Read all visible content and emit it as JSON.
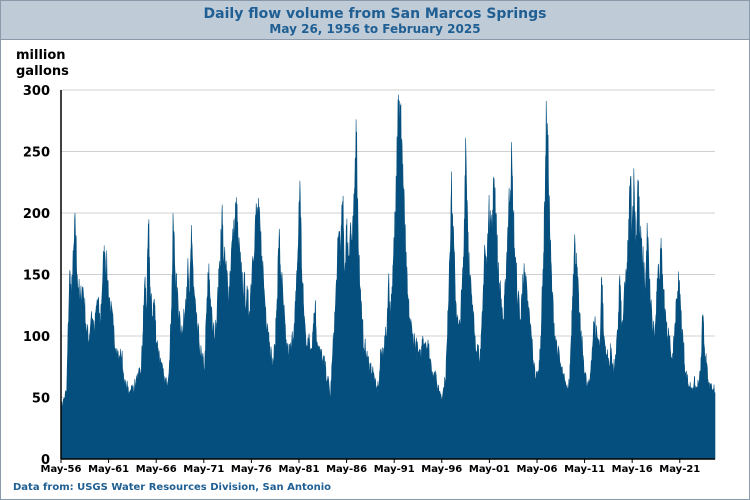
{
  "header": {
    "title": "Daily flow volume from San Marcos Springs",
    "subtitle": "May 26, 1956 to February 2025"
  },
  "source_text": "Data from:  USGS Water Resources Division, San Antonio",
  "colors": {
    "area": "#054f7e",
    "header_bg": "#bfcbd7",
    "title": "#1f5f93",
    "grid": "#d0d0d0"
  },
  "chart_data": {
    "type": "area",
    "title": "Daily flow volume from San Marcos Springs",
    "subtitle": "May 26, 1956 to February 2025",
    "ylabel": "million gallons",
    "xlabel": "",
    "ylim": [
      0,
      300
    ],
    "yticks": [
      0,
      50,
      100,
      150,
      200,
      250,
      300
    ],
    "xlim": [
      1956.4,
      2025.1
    ],
    "xticks": [
      {
        "x": 1956.4,
        "label": "May-56"
      },
      {
        "x": 1961.4,
        "label": "May-61"
      },
      {
        "x": 1966.4,
        "label": "May-66"
      },
      {
        "x": 1971.4,
        "label": "May-71"
      },
      {
        "x": 1976.4,
        "label": "May-76"
      },
      {
        "x": 1981.4,
        "label": "May-81"
      },
      {
        "x": 1986.4,
        "label": "May-86"
      },
      {
        "x": 1991.4,
        "label": "May-91"
      },
      {
        "x": 1996.4,
        "label": "May-96"
      },
      {
        "x": 2001.4,
        "label": "May-01"
      },
      {
        "x": 2006.4,
        "label": "May-06"
      },
      {
        "x": 2011.4,
        "label": "May-11"
      },
      {
        "x": 2016.4,
        "label": "May-16"
      },
      {
        "x": 2021.4,
        "label": "May-21"
      }
    ],
    "grid": "horizontal",
    "series": [
      {
        "name": "",
        "points": [
          [
            1956.4,
            40
          ],
          [
            1956.7,
            48
          ],
          [
            1957.0,
            55
          ],
          [
            1957.3,
            150
          ],
          [
            1957.5,
            130
          ],
          [
            1957.7,
            160
          ],
          [
            1957.9,
            188
          ],
          [
            1958.1,
            150
          ],
          [
            1958.4,
            125
          ],
          [
            1958.7,
            140
          ],
          [
            1959.0,
            110
          ],
          [
            1959.3,
            95
          ],
          [
            1959.6,
            120
          ],
          [
            1959.9,
            100
          ],
          [
            1960.2,
            130
          ],
          [
            1960.5,
            110
          ],
          [
            1960.8,
            150
          ],
          [
            1961.0,
            168
          ],
          [
            1961.3,
            145
          ],
          [
            1961.6,
            120
          ],
          [
            1961.9,
            105
          ],
          [
            1962.2,
            90
          ],
          [
            1962.5,
            80
          ],
          [
            1962.8,
            85
          ],
          [
            1963.0,
            60
          ],
          [
            1963.3,
            58
          ],
          [
            1963.6,
            55
          ],
          [
            1963.9,
            57
          ],
          [
            1964.2,
            60
          ],
          [
            1964.5,
            65
          ],
          [
            1964.8,
            70
          ],
          [
            1965.0,
            100
          ],
          [
            1965.2,
            145
          ],
          [
            1965.4,
            120
          ],
          [
            1965.6,
            188
          ],
          [
            1965.8,
            130
          ],
          [
            1966.0,
            115
          ],
          [
            1966.2,
            130
          ],
          [
            1966.4,
            95
          ],
          [
            1966.6,
            90
          ],
          [
            1966.9,
            75
          ],
          [
            1967.2,
            65
          ],
          [
            1967.5,
            60
          ],
          [
            1967.8,
            80
          ],
          [
            1968.0,
            120
          ],
          [
            1968.2,
            192
          ],
          [
            1968.4,
            150
          ],
          [
            1968.6,
            130
          ],
          [
            1968.9,
            115
          ],
          [
            1969.2,
            100
          ],
          [
            1969.5,
            130
          ],
          [
            1969.7,
            155
          ],
          [
            1969.9,
            120
          ],
          [
            1970.1,
            190
          ],
          [
            1970.3,
            140
          ],
          [
            1970.6,
            110
          ],
          [
            1970.9,
            95
          ],
          [
            1971.2,
            80
          ],
          [
            1971.5,
            75
          ],
          [
            1971.7,
            120
          ],
          [
            1971.9,
            150
          ],
          [
            1972.1,
            130
          ],
          [
            1972.3,
            105
          ],
          [
            1972.6,
            100
          ],
          [
            1972.8,
            120
          ],
          [
            1973.0,
            145
          ],
          [
            1973.3,
            200
          ],
          [
            1973.5,
            160
          ],
          [
            1973.8,
            150
          ],
          [
            1974.0,
            130
          ],
          [
            1974.3,
            170
          ],
          [
            1974.6,
            180
          ],
          [
            1974.8,
            204
          ],
          [
            1975.0,
            175
          ],
          [
            1975.3,
            150
          ],
          [
            1975.6,
            140
          ],
          [
            1975.9,
            130
          ],
          [
            1976.2,
            120
          ],
          [
            1976.5,
            160
          ],
          [
            1976.8,
            192
          ],
          [
            1977.0,
            197
          ],
          [
            1977.2,
            190
          ],
          [
            1977.5,
            165
          ],
          [
            1977.8,
            130
          ],
          [
            1978.1,
            110
          ],
          [
            1978.3,
            95
          ],
          [
            1978.6,
            75
          ],
          [
            1978.9,
            90
          ],
          [
            1979.1,
            130
          ],
          [
            1979.3,
            178
          ],
          [
            1979.5,
            150
          ],
          [
            1979.8,
            120
          ],
          [
            1980.0,
            95
          ],
          [
            1980.3,
            85
          ],
          [
            1980.6,
            90
          ],
          [
            1980.9,
            110
          ],
          [
            1981.1,
            130
          ],
          [
            1981.3,
            170
          ],
          [
            1981.5,
            226
          ],
          [
            1981.7,
            150
          ],
          [
            1981.9,
            120
          ],
          [
            1982.1,
            100
          ],
          [
            1982.4,
            95
          ],
          [
            1982.7,
            90
          ],
          [
            1982.9,
            110
          ],
          [
            1983.1,
            125
          ],
          [
            1983.3,
            95
          ],
          [
            1983.6,
            85
          ],
          [
            1983.9,
            80
          ],
          [
            1984.1,
            75
          ],
          [
            1984.4,
            65
          ],
          [
            1984.7,
            50
          ],
          [
            1984.9,
            80
          ],
          [
            1985.2,
            120
          ],
          [
            1985.4,
            150
          ],
          [
            1985.6,
            185
          ],
          [
            1985.8,
            170
          ],
          [
            1986.0,
            204
          ],
          [
            1986.2,
            150
          ],
          [
            1986.4,
            185
          ],
          [
            1986.6,
            165
          ],
          [
            1986.8,
            190
          ],
          [
            1987.0,
            170
          ],
          [
            1987.2,
            200
          ],
          [
            1987.4,
            276
          ],
          [
            1987.6,
            190
          ],
          [
            1987.8,
            140
          ],
          [
            1988.0,
            110
          ],
          [
            1988.3,
            90
          ],
          [
            1988.6,
            80
          ],
          [
            1988.9,
            75
          ],
          [
            1989.2,
            70
          ],
          [
            1989.5,
            55
          ],
          [
            1989.8,
            60
          ],
          [
            1990.0,
            85
          ],
          [
            1990.3,
            90
          ],
          [
            1990.6,
            100
          ],
          [
            1990.8,
            145
          ],
          [
            1991.0,
            120
          ],
          [
            1991.2,
            130
          ],
          [
            1991.4,
            175
          ],
          [
            1991.6,
            230
          ],
          [
            1991.8,
            292
          ],
          [
            1992.0,
            275
          ],
          [
            1992.2,
            260
          ],
          [
            1992.4,
            210
          ],
          [
            1992.6,
            165
          ],
          [
            1992.8,
            130
          ],
          [
            1993.0,
            115
          ],
          [
            1993.3,
            100
          ],
          [
            1993.6,
            95
          ],
          [
            1993.9,
            85
          ],
          [
            1994.2,
            80
          ],
          [
            1994.4,
            100
          ],
          [
            1994.7,
            95
          ],
          [
            1995.0,
            90
          ],
          [
            1995.3,
            75
          ],
          [
            1995.6,
            70
          ],
          [
            1995.9,
            60
          ],
          [
            1996.2,
            55
          ],
          [
            1996.5,
            52
          ],
          [
            1996.8,
            65
          ],
          [
            1997.0,
            100
          ],
          [
            1997.2,
            160
          ],
          [
            1997.4,
            218
          ],
          [
            1997.6,
            180
          ],
          [
            1997.8,
            140
          ],
          [
            1998.0,
            115
          ],
          [
            1998.2,
            100
          ],
          [
            1998.5,
            130
          ],
          [
            1998.7,
            160
          ],
          [
            1998.9,
            261
          ],
          [
            1999.1,
            200
          ],
          [
            1999.3,
            150
          ],
          [
            1999.6,
            120
          ],
          [
            1999.9,
            100
          ],
          [
            2000.2,
            90
          ],
          [
            2000.5,
            85
          ],
          [
            2000.7,
            120
          ],
          [
            2000.9,
            174
          ],
          [
            2001.1,
            150
          ],
          [
            2001.3,
            190
          ],
          [
            2001.5,
            202
          ],
          [
            2001.7,
            180
          ],
          [
            2001.9,
            228
          ],
          [
            2002.1,
            200
          ],
          [
            2002.3,
            150
          ],
          [
            2002.6,
            130
          ],
          [
            2002.9,
            110
          ],
          [
            2003.1,
            140
          ],
          [
            2003.3,
            180
          ],
          [
            2003.5,
            210
          ],
          [
            2003.7,
            243
          ],
          [
            2003.9,
            200
          ],
          [
            2004.1,
            160
          ],
          [
            2004.4,
            130
          ],
          [
            2004.7,
            110
          ],
          [
            2004.9,
            150
          ],
          [
            2005.2,
            140
          ],
          [
            2005.5,
            120
          ],
          [
            2005.8,
            100
          ],
          [
            2006.0,
            80
          ],
          [
            2006.3,
            65
          ],
          [
            2006.6,
            70
          ],
          [
            2006.8,
            100
          ],
          [
            2007.0,
            140
          ],
          [
            2007.2,
            200
          ],
          [
            2007.4,
            278
          ],
          [
            2007.6,
            230
          ],
          [
            2007.8,
            170
          ],
          [
            2008.0,
            130
          ],
          [
            2008.3,
            100
          ],
          [
            2008.6,
            85
          ],
          [
            2008.9,
            75
          ],
          [
            2009.2,
            65
          ],
          [
            2009.5,
            55
          ],
          [
            2009.8,
            60
          ],
          [
            2010.0,
            100
          ],
          [
            2010.2,
            150
          ],
          [
            2010.4,
            174
          ],
          [
            2010.6,
            150
          ],
          [
            2010.8,
            120
          ],
          [
            2011.0,
            100
          ],
          [
            2011.3,
            80
          ],
          [
            2011.6,
            60
          ],
          [
            2011.9,
            58
          ],
          [
            2012.1,
            80
          ],
          [
            2012.4,
            110
          ],
          [
            2012.7,
            100
          ],
          [
            2013.0,
            90
          ],
          [
            2013.2,
            148
          ],
          [
            2013.4,
            100
          ],
          [
            2013.7,
            85
          ],
          [
            2014.0,
            75
          ],
          [
            2014.2,
            90
          ],
          [
            2014.4,
            70
          ],
          [
            2014.7,
            80
          ],
          [
            2014.9,
            105
          ],
          [
            2015.1,
            149
          ],
          [
            2015.3,
            100
          ],
          [
            2015.5,
            120
          ],
          [
            2015.8,
            150
          ],
          [
            2016.0,
            170
          ],
          [
            2016.2,
            226
          ],
          [
            2016.4,
            190
          ],
          [
            2016.6,
            224
          ],
          [
            2016.8,
            170
          ],
          [
            2017.0,
            227
          ],
          [
            2017.2,
            180
          ],
          [
            2017.5,
            160
          ],
          [
            2017.8,
            140
          ],
          [
            2018.0,
            184
          ],
          [
            2018.2,
            140
          ],
          [
            2018.5,
            110
          ],
          [
            2018.8,
            100
          ],
          [
            2019.0,
            130
          ],
          [
            2019.2,
            150
          ],
          [
            2019.4,
            167
          ],
          [
            2019.6,
            150
          ],
          [
            2019.9,
            120
          ],
          [
            2020.1,
            100
          ],
          [
            2020.4,
            90
          ],
          [
            2020.7,
            80
          ],
          [
            2020.9,
            110
          ],
          [
            2021.1,
            130
          ],
          [
            2021.3,
            141
          ],
          [
            2021.5,
            120
          ],
          [
            2021.8,
            90
          ],
          [
            2022.0,
            70
          ],
          [
            2022.3,
            60
          ],
          [
            2022.6,
            58
          ],
          [
            2022.9,
            62
          ],
          [
            2023.1,
            56
          ],
          [
            2023.4,
            60
          ],
          [
            2023.6,
            70
          ],
          [
            2023.8,
            113
          ],
          [
            2024.0,
            90
          ],
          [
            2024.2,
            75
          ],
          [
            2024.4,
            60
          ],
          [
            2024.6,
            55
          ],
          [
            2024.8,
            56
          ],
          [
            2025.1,
            54
          ]
        ]
      }
    ]
  }
}
